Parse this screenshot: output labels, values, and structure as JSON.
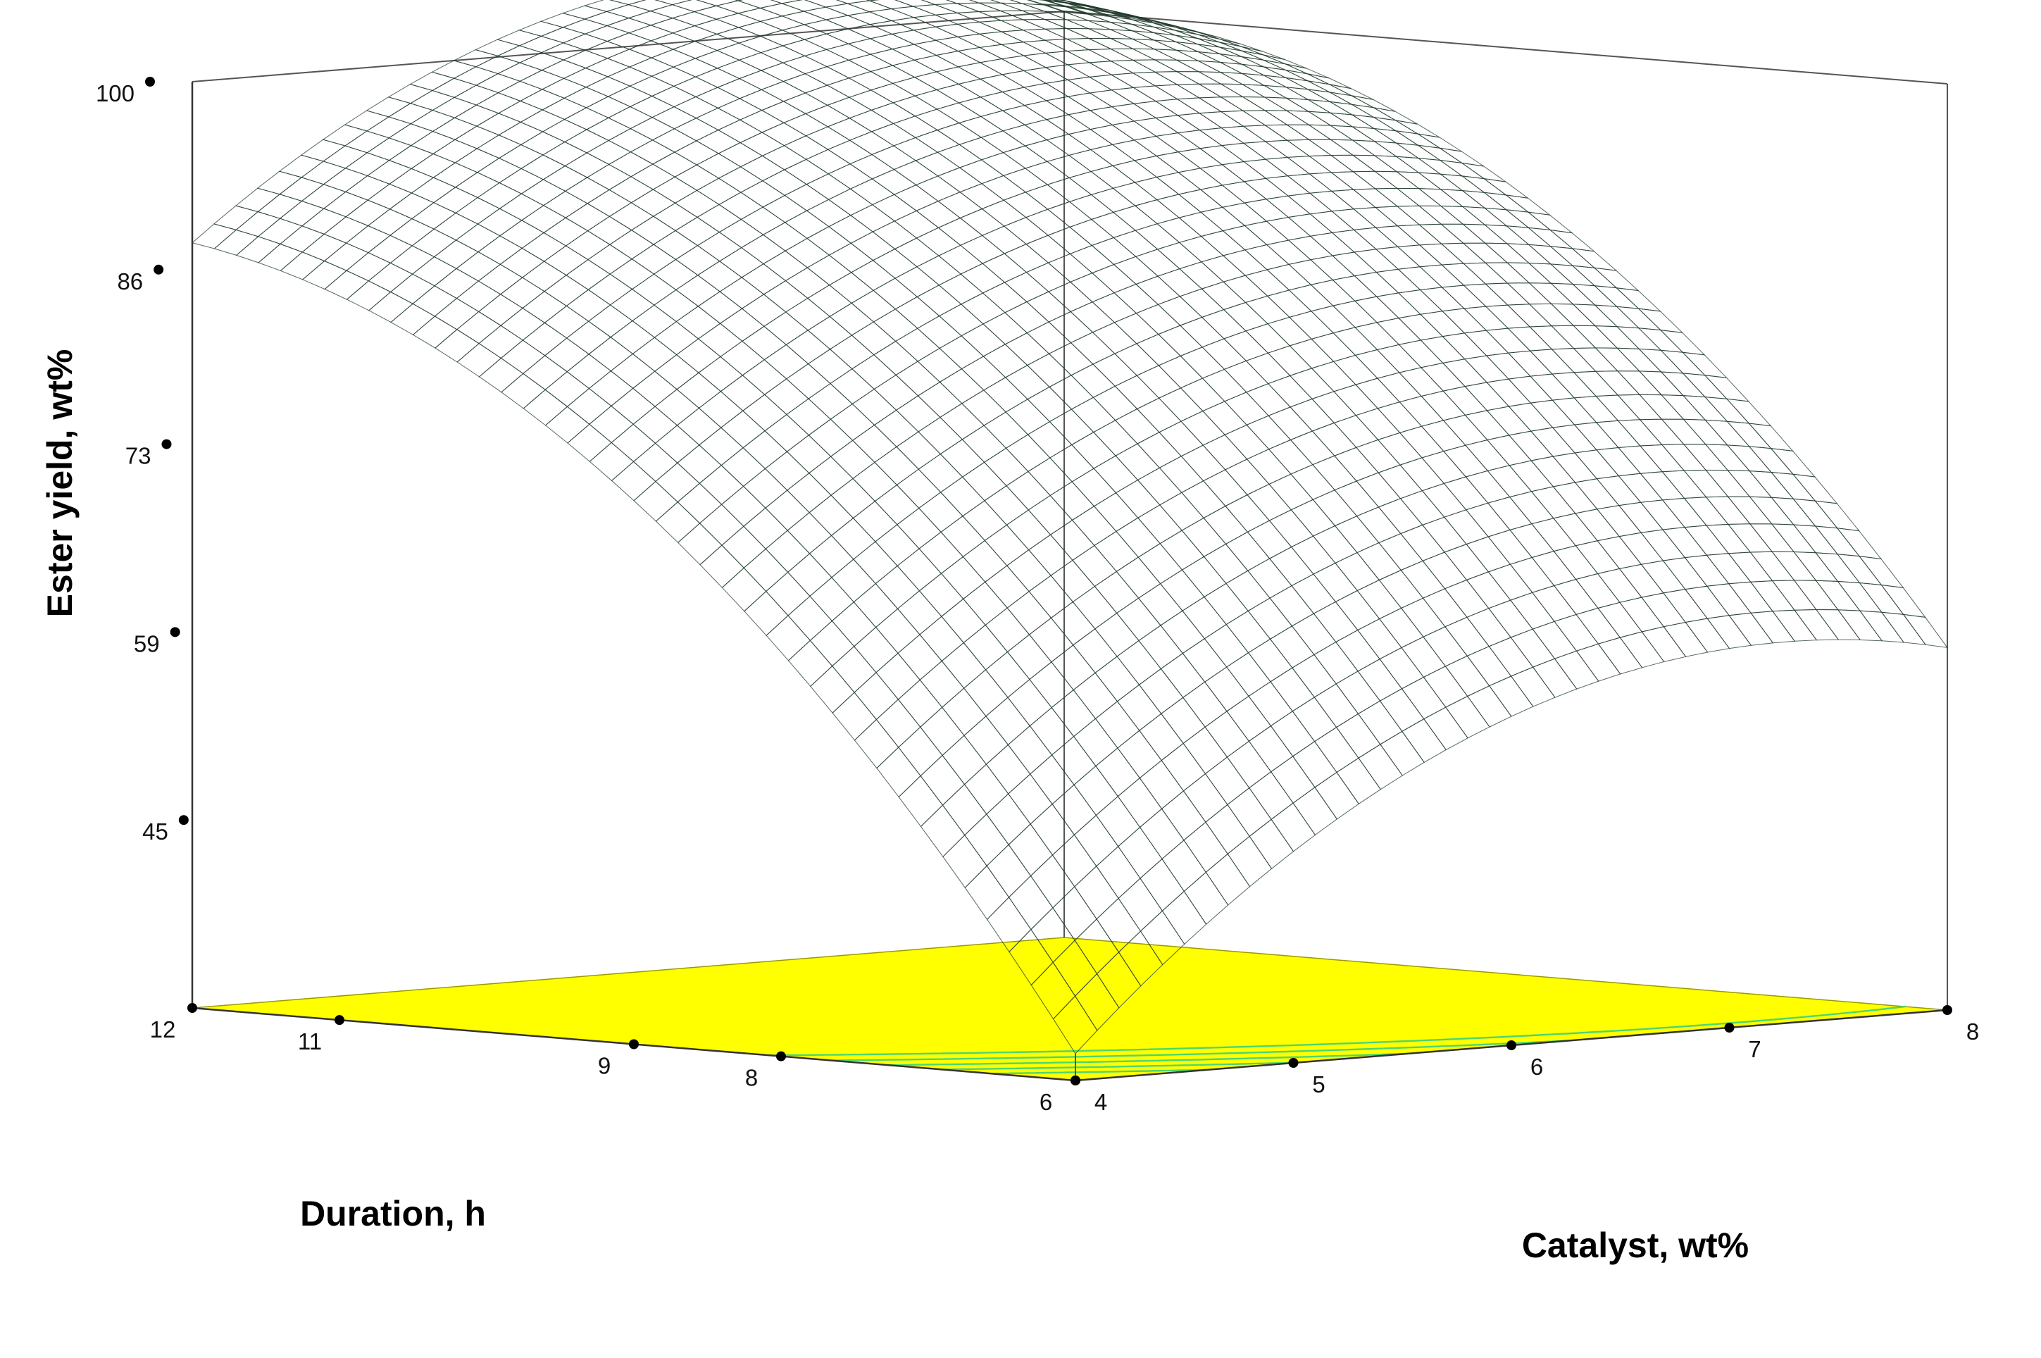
{
  "chart_data": {
    "type": "surface3d",
    "title": "",
    "zlabel": "Ester yield, wt%",
    "xlabel": "Catalyst, wt%",
    "ylabel": "Duration, h",
    "x_ticks": [
      "4",
      "5",
      "6",
      "7",
      "8"
    ],
    "y_ticks": [
      "6",
      "8",
      "9",
      "11",
      "12"
    ],
    "z_ticks": [
      "45",
      "59",
      "73",
      "86",
      "100"
    ],
    "xlim": [
      4,
      8
    ],
    "ylim": [
      6,
      12
    ],
    "zlim": [
      31,
      100
    ],
    "corner_values": [
      {
        "catalyst": 4,
        "duration": 6,
        "yield": 33
      },
      {
        "catalyst": 4,
        "duration": 12,
        "yield": 88
      },
      {
        "catalyst": 8,
        "duration": 6,
        "yield": 58
      },
      {
        "catalyst": 8,
        "duration": 12,
        "yield": 100
      }
    ],
    "colormap": [
      "#1e90ff",
      "#00ffff",
      "#00ff00",
      "#ffff00",
      "#ff0000"
    ],
    "floor_color": "#ffff00",
    "contour_color": "#4cd66e",
    "mesh_line_color": "#1f3a2a"
  }
}
